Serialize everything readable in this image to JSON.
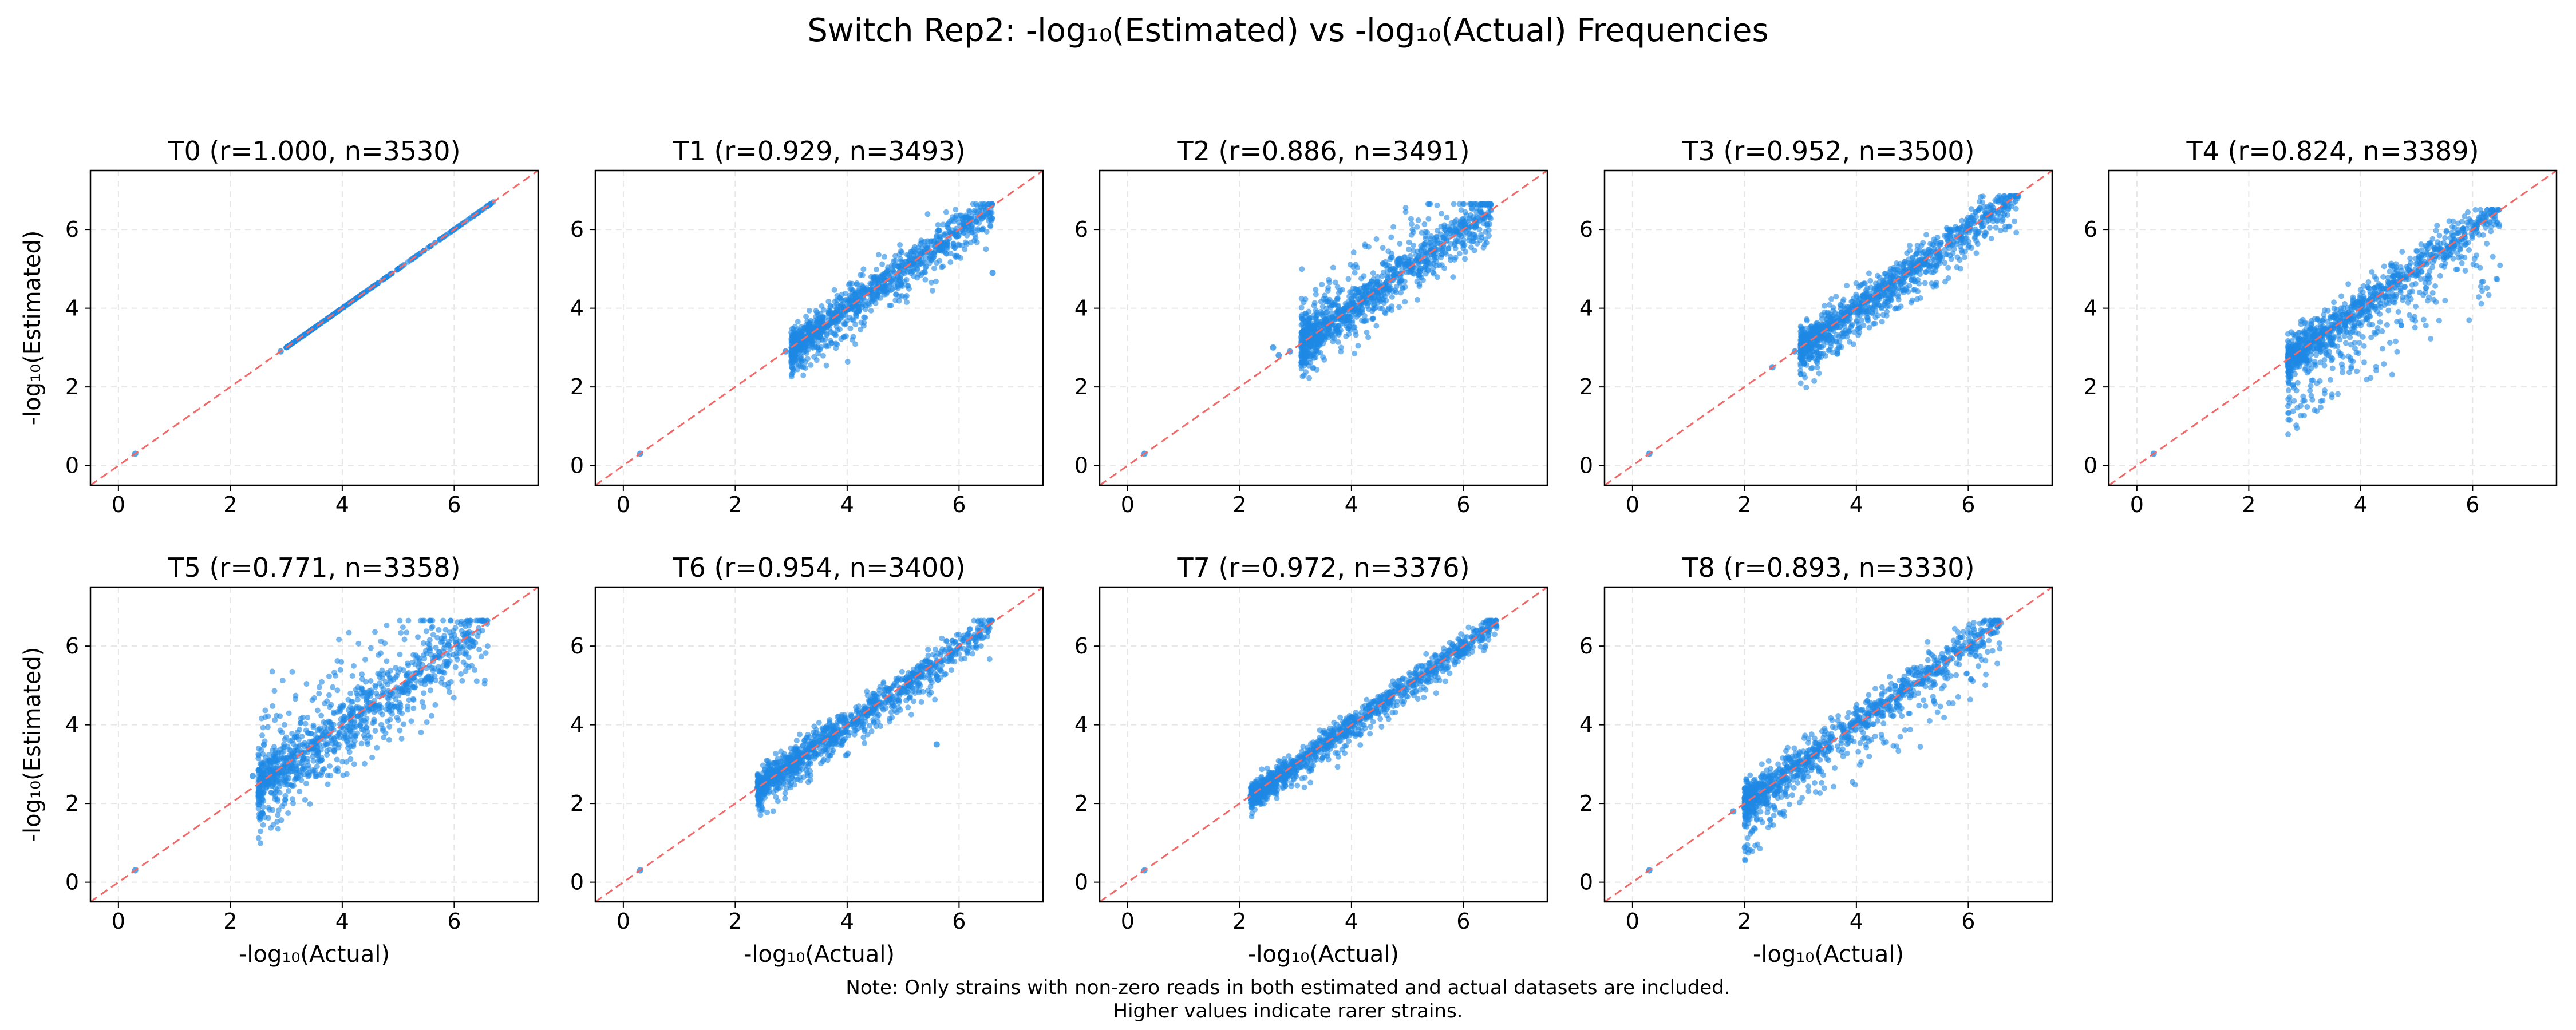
{
  "figure": {
    "title": "Switch Rep2: -log₁₀(Estimated) vs -log₁₀(Actual) Frequencies",
    "note_line1": "Note: Only strains with non-zero reads in both estimated and actual datasets are included.",
    "note_line2": "Higher values indicate rarer strains.",
    "xlabel": "-log₁₀(Actual)",
    "ylabel": "-log₁₀(Estimated)",
    "colors": {
      "points": "#1e88e5",
      "reference_line": "#f06a6a",
      "grid": "#e6e6e6",
      "axes": "#000000"
    }
  },
  "chart_data": [
    {
      "panel": "T0",
      "type": "scatter",
      "title": "T0 (r=1.000, n=3530)",
      "r": 1.0,
      "n": 3530,
      "xlim": [
        -0.5,
        7.5
      ],
      "ylim": [
        -0.5,
        7.5
      ],
      "xticks": [
        0,
        2,
        4,
        6
      ],
      "yticks": [
        0,
        2,
        4,
        6
      ],
      "grid": true,
      "reference_line": "y = x",
      "cluster": {
        "x_range": [
          3.0,
          6.7
        ],
        "spread": 0.0,
        "up_scatter": 0.0,
        "down_scatter": 0.0,
        "cap_y": null
      },
      "outliers": [
        [
          0.3,
          0.3
        ],
        [
          2.9,
          2.9
        ],
        [
          6.35,
          6.35
        ],
        [
          6.6,
          6.6
        ]
      ]
    },
    {
      "panel": "T1",
      "type": "scatter",
      "title": "T1 (r=0.929, n=3493)",
      "r": 0.929,
      "n": 3493,
      "xlim": [
        -0.5,
        7.5
      ],
      "ylim": [
        -0.5,
        7.5
      ],
      "xticks": [
        0,
        2,
        4,
        6
      ],
      "yticks": [
        0,
        2,
        4,
        6
      ],
      "grid": true,
      "reference_line": "y = x",
      "cluster": {
        "x_range": [
          3.0,
          6.6
        ],
        "spread": 0.25,
        "up_scatter": 0.2,
        "down_scatter": 0.7,
        "cap_y": 6.65
      },
      "outliers": [
        [
          0.3,
          0.3
        ],
        [
          2.9,
          2.9
        ],
        [
          6.6,
          4.9
        ]
      ]
    },
    {
      "panel": "T2",
      "type": "scatter",
      "title": "T2 (r=0.886, n=3491)",
      "r": 0.886,
      "n": 3491,
      "xlim": [
        -0.5,
        7.5
      ],
      "ylim": [
        -0.5,
        7.5
      ],
      "xticks": [
        0,
        2,
        4,
        6
      ],
      "yticks": [
        0,
        2,
        4,
        6
      ],
      "grid": true,
      "reference_line": "y = x",
      "cluster": {
        "x_range": [
          3.1,
          6.5
        ],
        "spread": 0.3,
        "up_scatter": 1.3,
        "down_scatter": 0.5,
        "cap_y": 6.65
      },
      "outliers": [
        [
          0.3,
          0.3
        ],
        [
          2.7,
          2.8
        ],
        [
          2.9,
          2.9
        ],
        [
          2.6,
          3.0
        ]
      ]
    },
    {
      "panel": "T3",
      "type": "scatter",
      "title": "T3 (r=0.952, n=3500)",
      "r": 0.952,
      "n": 3500,
      "xlim": [
        -0.5,
        7.5
      ],
      "ylim": [
        -0.5,
        7.5
      ],
      "xticks": [
        0,
        2,
        4,
        6
      ],
      "yticks": [
        0,
        2,
        4,
        6
      ],
      "grid": true,
      "reference_line": "y = x",
      "cluster": {
        "x_range": [
          3.0,
          6.9
        ],
        "spread": 0.22,
        "up_scatter": 0.3,
        "down_scatter": 0.8,
        "cap_y": 6.85
      },
      "outliers": [
        [
          0.3,
          0.3
        ],
        [
          2.5,
          2.5
        ],
        [
          2.9,
          2.9
        ]
      ]
    },
    {
      "panel": "T4",
      "type": "scatter",
      "title": "T4 (r=0.824, n=3389)",
      "r": 0.824,
      "n": 3389,
      "xlim": [
        -0.5,
        7.5
      ],
      "ylim": [
        -0.5,
        7.5
      ],
      "xticks": [
        0,
        2,
        4,
        6
      ],
      "yticks": [
        0,
        2,
        4,
        6
      ],
      "grid": true,
      "reference_line": "y = x",
      "cluster": {
        "x_range": [
          2.7,
          6.5
        ],
        "spread": 0.25,
        "up_scatter": 0.5,
        "down_scatter": 1.8,
        "cap_y": 6.5
      },
      "outliers": [
        [
          0.3,
          0.3
        ]
      ]
    },
    {
      "panel": "T5",
      "type": "scatter",
      "title": "T5 (r=0.771, n=3358)",
      "r": 0.771,
      "n": 3358,
      "xlim": [
        -0.5,
        7.5
      ],
      "ylim": [
        -0.5,
        7.5
      ],
      "xticks": [
        0,
        2,
        4,
        6
      ],
      "yticks": [
        0,
        2,
        4,
        6
      ],
      "grid": true,
      "reference_line": "y = x",
      "cluster": {
        "x_range": [
          2.5,
          6.6
        ],
        "spread": 0.35,
        "up_scatter": 1.9,
        "down_scatter": 1.2,
        "cap_y": 6.65
      },
      "outliers": [
        [
          0.3,
          0.3
        ],
        [
          2.4,
          2.7
        ],
        [
          2.6,
          2.5
        ]
      ]
    },
    {
      "panel": "T6",
      "type": "scatter",
      "title": "T6 (r=0.954, n=3400)",
      "r": 0.954,
      "n": 3400,
      "xlim": [
        -0.5,
        7.5
      ],
      "ylim": [
        -0.5,
        7.5
      ],
      "xticks": [
        0,
        2,
        4,
        6
      ],
      "yticks": [
        0,
        2,
        4,
        6
      ],
      "grid": true,
      "reference_line": "y = x",
      "cluster": {
        "x_range": [
          2.4,
          6.6
        ],
        "spread": 0.2,
        "up_scatter": 0.3,
        "down_scatter": 0.6,
        "cap_y": 6.65
      },
      "outliers": [
        [
          0.3,
          0.3
        ],
        [
          2.4,
          2.4
        ],
        [
          5.6,
          3.5
        ]
      ]
    },
    {
      "panel": "T7",
      "type": "scatter",
      "title": "T7 (r=0.972, n=3376)",
      "r": 0.972,
      "n": 3376,
      "xlim": [
        -0.5,
        7.5
      ],
      "ylim": [
        -0.5,
        7.5
      ],
      "xticks": [
        0,
        2,
        4,
        6
      ],
      "yticks": [
        0,
        2,
        4,
        6
      ],
      "grid": true,
      "reference_line": "y = x",
      "cluster": {
        "x_range": [
          2.2,
          6.6
        ],
        "spread": 0.15,
        "up_scatter": 0.25,
        "down_scatter": 0.4,
        "cap_y": 6.65
      },
      "outliers": [
        [
          0.3,
          0.3
        ],
        [
          2.2,
          2.2
        ]
      ]
    },
    {
      "panel": "T8",
      "type": "scatter",
      "title": "T8 (r=0.893, n=3330)",
      "r": 0.893,
      "n": 3330,
      "xlim": [
        -0.5,
        7.5
      ],
      "ylim": [
        -0.5,
        7.5
      ],
      "xticks": [
        0,
        2,
        4,
        6
      ],
      "yticks": [
        0,
        2,
        4,
        6
      ],
      "grid": true,
      "reference_line": "y = x",
      "cluster": {
        "x_range": [
          2.0,
          6.6
        ],
        "spread": 0.22,
        "up_scatter": 0.35,
        "down_scatter": 1.3,
        "cap_y": 6.65
      },
      "outliers": [
        [
          0.3,
          0.3
        ],
        [
          1.8,
          1.8
        ],
        [
          2.0,
          1.9
        ],
        [
          2.2,
          2.2
        ]
      ]
    }
  ]
}
